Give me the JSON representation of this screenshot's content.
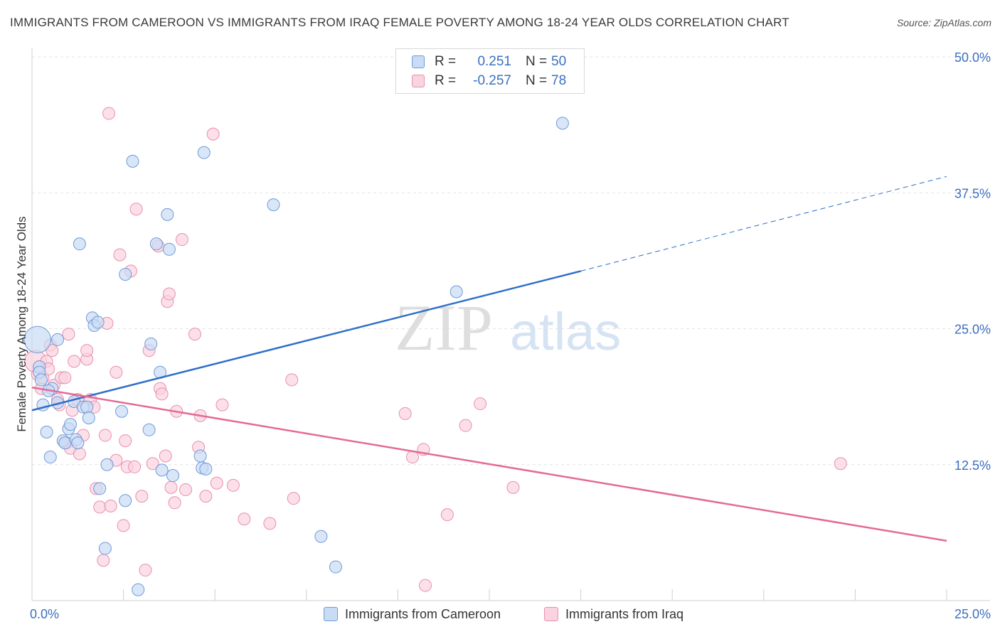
{
  "title": "IMMIGRANTS FROM CAMEROON VS IMMIGRANTS FROM IRAQ FEMALE POVERTY AMONG 18-24 YEAR OLDS CORRELATION CHART",
  "source": "Source: ZipAtlas.com",
  "watermark": {
    "zip": "ZIP",
    "atlas": "atlas"
  },
  "colors": {
    "blue_fill": "#c9dcf5",
    "blue_stroke": "#6f9ad8",
    "blue_line": "#2f6fca",
    "pink_fill": "#f9d3df",
    "pink_stroke": "#ea8fab",
    "pink_line": "#e46a95",
    "grid": "#e3e3e3",
    "tick_label": "#3a6fc0"
  },
  "legend": {
    "rows": [
      {
        "r_label": "R =",
        "r_value": "0.251",
        "n_label": "N =",
        "n_value": "50"
      },
      {
        "r_label": "R =",
        "r_value": "-0.257",
        "n_label": "N =",
        "n_value": "78"
      }
    ]
  },
  "bottom_legend": {
    "cameroon": "Immigrants from Cameroon",
    "iraq": "Immigrants from Iraq"
  },
  "chart_data": {
    "type": "scatter",
    "title": "IMMIGRANTS FROM CAMEROON VS IMMIGRANTS FROM IRAQ FEMALE POVERTY AMONG 18-24 YEAR OLDS CORRELATION CHART",
    "xlabel": "",
    "ylabel": "Female Poverty Among 18-24 Year Olds",
    "xlim": [
      0,
      25
    ],
    "ylim": [
      0,
      50
    ],
    "x_tick_labels": [
      {
        "value": 0,
        "label": "0.0%"
      },
      {
        "value": 25,
        "label": "25.0%"
      }
    ],
    "y_tick_labels": [
      {
        "value": 12.5,
        "label": "12.5%"
      },
      {
        "value": 25,
        "label": "25.0%"
      },
      {
        "value": 37.5,
        "label": "37.5%"
      },
      {
        "value": 50,
        "label": "50.0%"
      }
    ],
    "series": [
      {
        "name": "Immigrants from Cameroon",
        "r": 0.251,
        "n": 50,
        "trend": {
          "x0": 0,
          "y0": 17.5,
          "x1": 15.0,
          "y1": 30.3,
          "dash_to_x": 25.0,
          "dash_to_y": 39.0
        },
        "points": [
          [
            0.15,
            24.0,
            2.2
          ],
          [
            0.2,
            21.5,
            1
          ],
          [
            0.2,
            21.0,
            1
          ],
          [
            0.3,
            18.0,
            1
          ],
          [
            0.4,
            15.5,
            1
          ],
          [
            0.5,
            13.2,
            1
          ],
          [
            0.55,
            19.5,
            1
          ],
          [
            0.7,
            24.0,
            1
          ],
          [
            0.7,
            18.2,
            1
          ],
          [
            0.85,
            14.7,
            1
          ],
          [
            0.9,
            14.5,
            1
          ],
          [
            1.0,
            15.8,
            1
          ],
          [
            1.05,
            16.2,
            1
          ],
          [
            1.15,
            18.3,
            1
          ],
          [
            1.2,
            14.8,
            1
          ],
          [
            1.25,
            14.5,
            1
          ],
          [
            1.3,
            32.8,
            1
          ],
          [
            1.4,
            17.8,
            1
          ],
          [
            1.5,
            17.8,
            1
          ],
          [
            1.55,
            16.8,
            1
          ],
          [
            1.65,
            26.0,
            1
          ],
          [
            1.7,
            25.3,
            1
          ],
          [
            1.8,
            25.6,
            1
          ],
          [
            1.85,
            10.3,
            1
          ],
          [
            2.0,
            4.8,
            1
          ],
          [
            2.05,
            12.5,
            1
          ],
          [
            2.45,
            17.4,
            1
          ],
          [
            2.55,
            9.2,
            1
          ],
          [
            2.55,
            30.0,
            1
          ],
          [
            2.75,
            40.4,
            1
          ],
          [
            2.9,
            1.0,
            1
          ],
          [
            3.2,
            15.7,
            1
          ],
          [
            3.25,
            23.6,
            1
          ],
          [
            3.4,
            32.8,
            1
          ],
          [
            3.5,
            21.0,
            1
          ],
          [
            3.55,
            12.0,
            1
          ],
          [
            3.7,
            35.5,
            1
          ],
          [
            3.75,
            32.3,
            1
          ],
          [
            3.85,
            11.5,
            1
          ],
          [
            4.6,
            13.3,
            1
          ],
          [
            4.65,
            12.2,
            1
          ],
          [
            4.75,
            12.1,
            1
          ],
          [
            4.7,
            41.2,
            1
          ],
          [
            6.6,
            36.4,
            1
          ],
          [
            7.9,
            5.9,
            1
          ],
          [
            8.3,
            3.1,
            1
          ],
          [
            11.6,
            28.4,
            1
          ],
          [
            14.5,
            43.9,
            1
          ],
          [
            0.45,
            19.3,
            1
          ],
          [
            0.25,
            20.3,
            1
          ]
        ]
      },
      {
        "name": "Immigrants from Iraq",
        "r": -0.257,
        "n": 78,
        "trend": {
          "x0": 0,
          "y0": 19.6,
          "x1": 25.0,
          "y1": 5.5
        },
        "points": [
          [
            0.1,
            22.0,
            1.8
          ],
          [
            0.15,
            20.8,
            1
          ],
          [
            0.2,
            21.5,
            1
          ],
          [
            0.25,
            19.5,
            1
          ],
          [
            0.3,
            20.5,
            1
          ],
          [
            0.4,
            22.0,
            1
          ],
          [
            0.45,
            21.3,
            1
          ],
          [
            0.5,
            23.5,
            1
          ],
          [
            0.6,
            19.8,
            1
          ],
          [
            0.7,
            18.5,
            1
          ],
          [
            0.75,
            18.0,
            1
          ],
          [
            0.8,
            20.5,
            1
          ],
          [
            0.9,
            20.5,
            1
          ],
          [
            0.95,
            14.5,
            1
          ],
          [
            1.0,
            24.5,
            1
          ],
          [
            1.05,
            14.0,
            1
          ],
          [
            1.1,
            17.5,
            1
          ],
          [
            1.15,
            22.0,
            1
          ],
          [
            1.25,
            18.5,
            1
          ],
          [
            1.3,
            13.5,
            1
          ],
          [
            1.4,
            15.2,
            1
          ],
          [
            1.5,
            22.2,
            1
          ],
          [
            1.5,
            23.0,
            1
          ],
          [
            1.6,
            18.5,
            1
          ],
          [
            1.7,
            17.8,
            1
          ],
          [
            1.75,
            10.3,
            1
          ],
          [
            1.85,
            8.6,
            1
          ],
          [
            1.95,
            3.7,
            1
          ],
          [
            2.0,
            15.2,
            1
          ],
          [
            2.05,
            25.5,
            1
          ],
          [
            2.1,
            44.8,
            1
          ],
          [
            2.15,
            8.7,
            1
          ],
          [
            2.3,
            21.0,
            1
          ],
          [
            2.3,
            12.9,
            1
          ],
          [
            2.4,
            31.8,
            1
          ],
          [
            2.5,
            6.9,
            1
          ],
          [
            2.55,
            14.7,
            1
          ],
          [
            2.6,
            12.3,
            1
          ],
          [
            2.7,
            30.3,
            1
          ],
          [
            2.8,
            12.3,
            1
          ],
          [
            2.85,
            36.0,
            1
          ],
          [
            3.0,
            9.6,
            1
          ],
          [
            3.1,
            2.8,
            1
          ],
          [
            3.2,
            23.0,
            1
          ],
          [
            3.3,
            12.6,
            1
          ],
          [
            3.45,
            32.6,
            1
          ],
          [
            3.5,
            19.5,
            1
          ],
          [
            3.55,
            19.0,
            1
          ],
          [
            3.65,
            13.3,
            1
          ],
          [
            3.7,
            27.5,
            1
          ],
          [
            3.75,
            28.2,
            1
          ],
          [
            3.8,
            10.4,
            1
          ],
          [
            3.9,
            9.0,
            1
          ],
          [
            3.95,
            17.4,
            1
          ],
          [
            4.1,
            33.2,
            1
          ],
          [
            4.2,
            10.2,
            1
          ],
          [
            4.45,
            24.5,
            1
          ],
          [
            4.55,
            14.1,
            1
          ],
          [
            4.6,
            17.0,
            1
          ],
          [
            4.75,
            9.6,
            1
          ],
          [
            5.2,
            18.0,
            1
          ],
          [
            4.95,
            42.9,
            1
          ],
          [
            5.05,
            10.8,
            1
          ],
          [
            5.5,
            10.6,
            1
          ],
          [
            5.8,
            7.5,
            1
          ],
          [
            6.5,
            7.1,
            1
          ],
          [
            7.1,
            20.3,
            1
          ],
          [
            7.15,
            9.4,
            1
          ],
          [
            10.2,
            17.2,
            1
          ],
          [
            10.4,
            13.2,
            1
          ],
          [
            10.7,
            13.9,
            1
          ],
          [
            10.75,
            1.4,
            1
          ],
          [
            11.35,
            7.9,
            1
          ],
          [
            11.85,
            16.1,
            1
          ],
          [
            12.25,
            18.1,
            1
          ],
          [
            13.15,
            10.4,
            1
          ],
          [
            22.1,
            12.6,
            1
          ],
          [
            0.55,
            23.0,
            1
          ]
        ]
      }
    ],
    "legend": "top-center",
    "grid": true
  }
}
